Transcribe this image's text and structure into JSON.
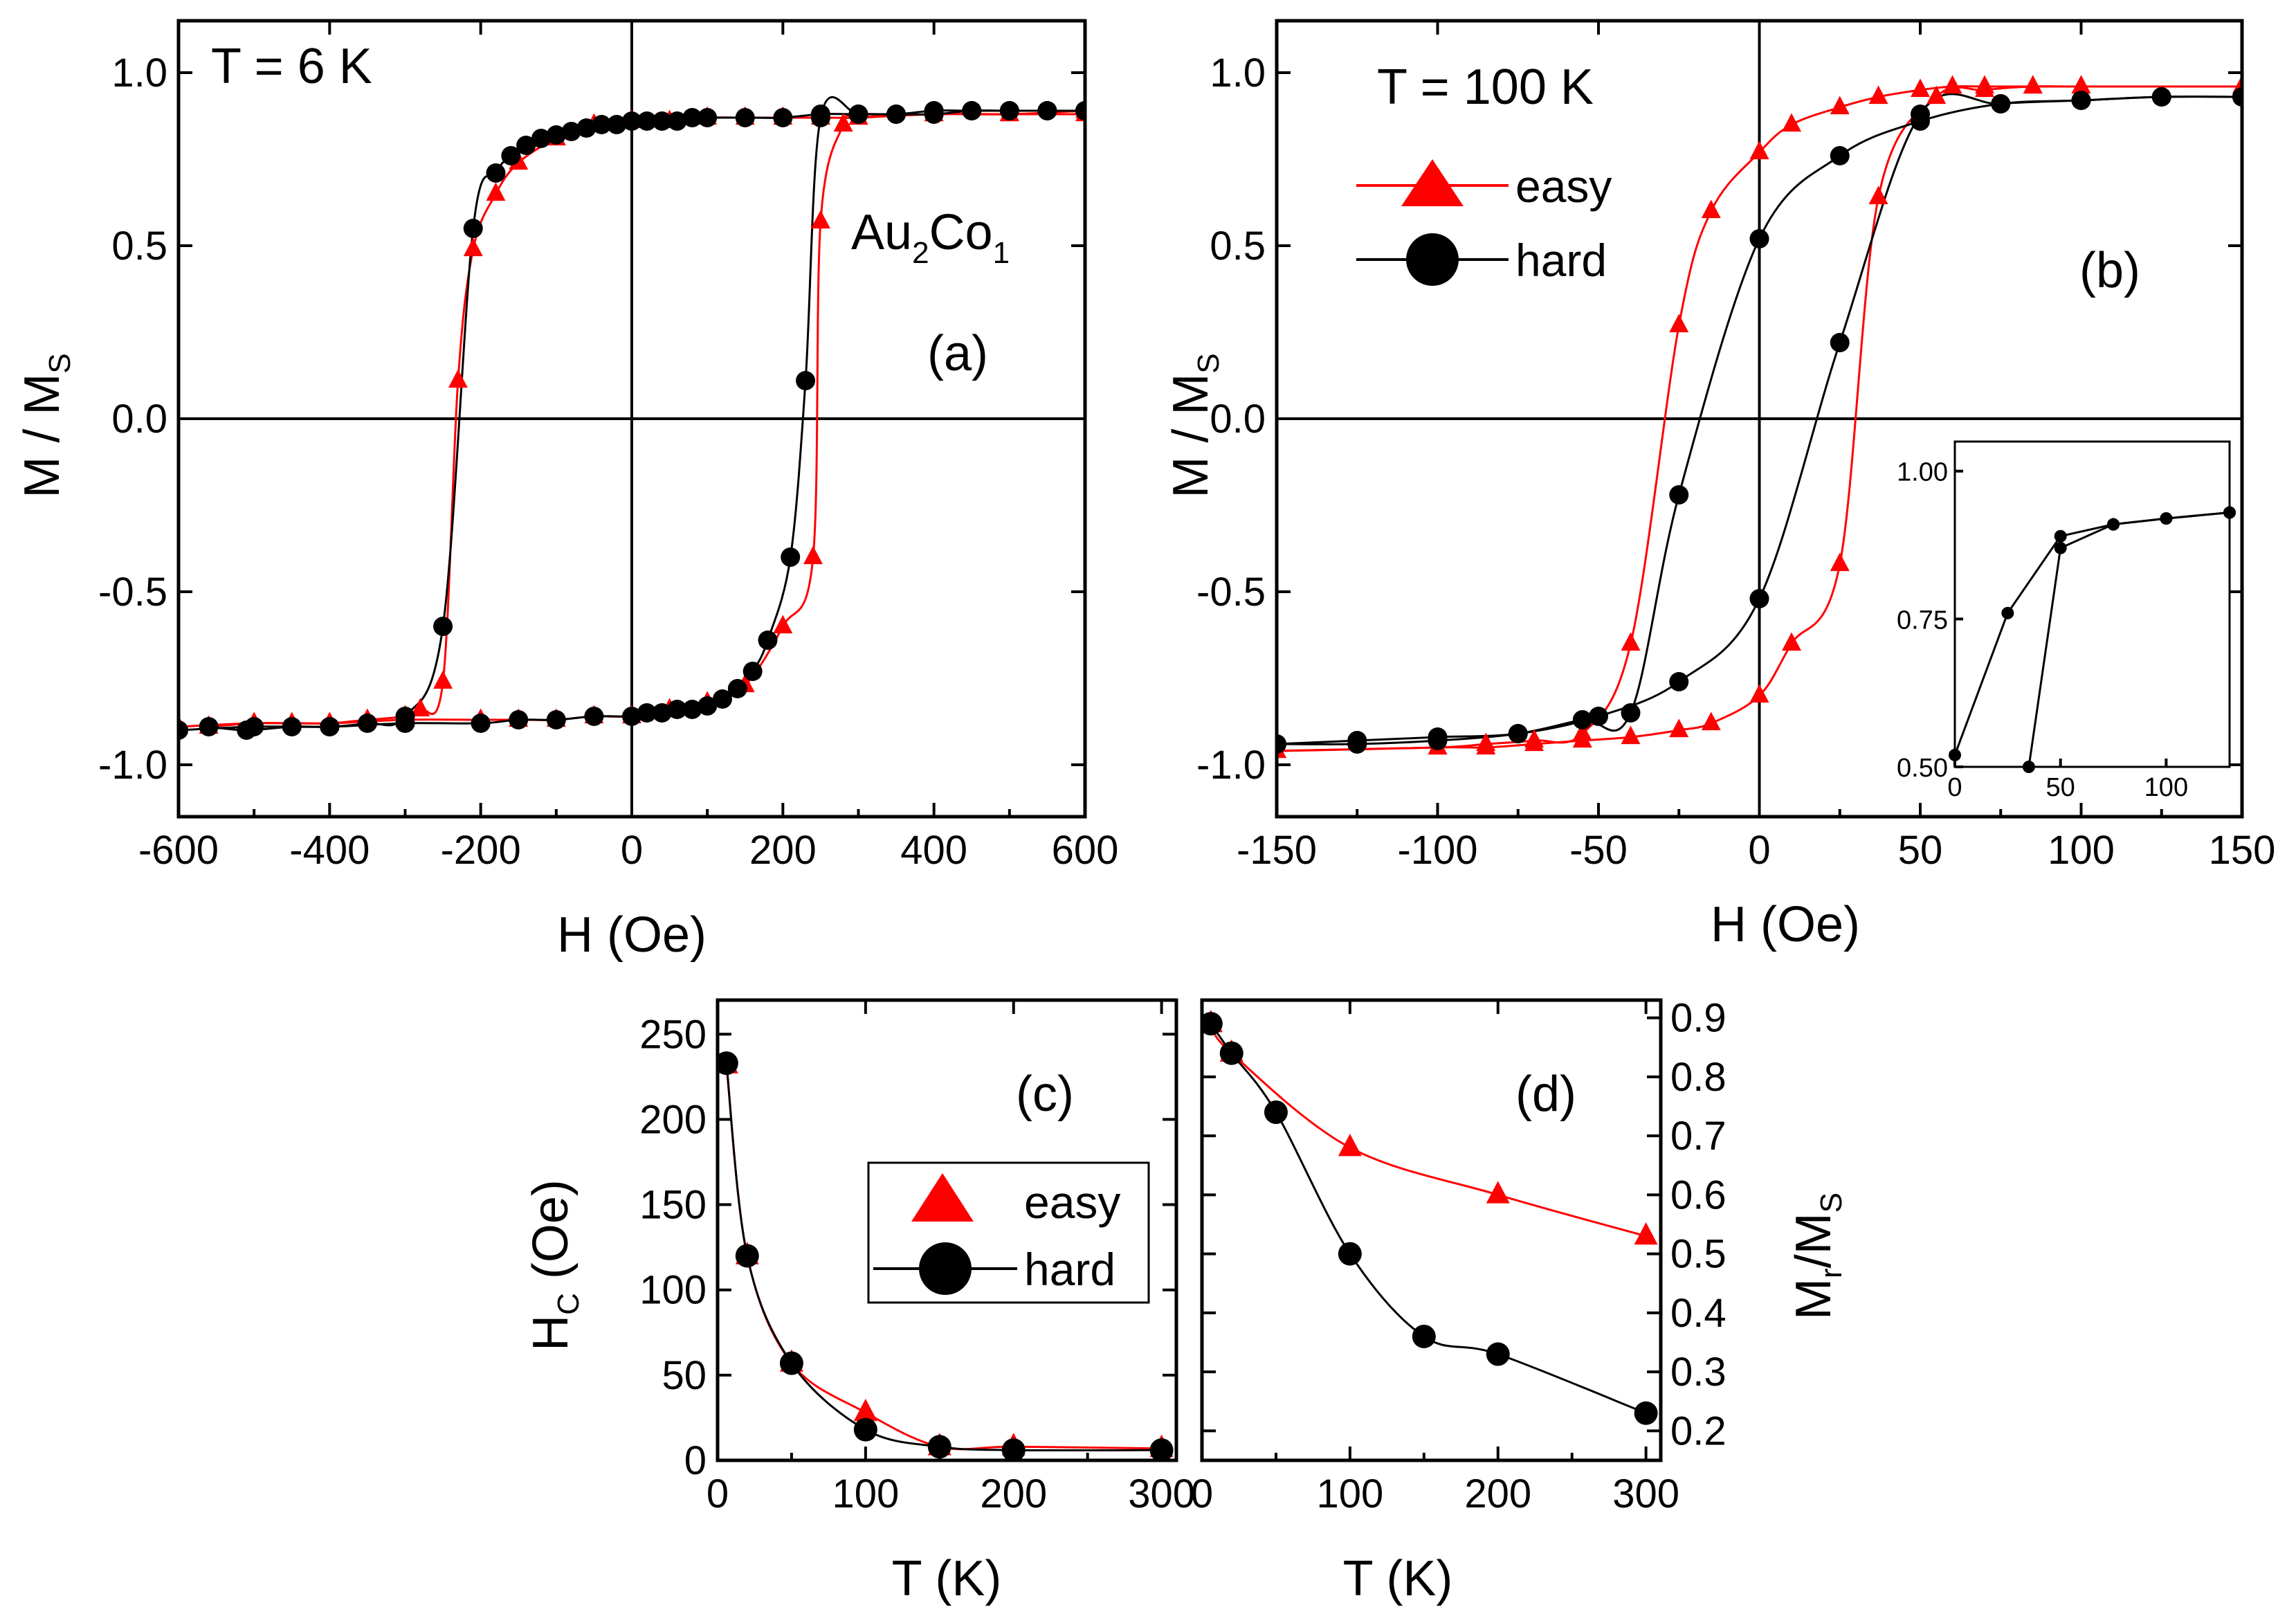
{
  "colors": {
    "easy": "#ff0000",
    "hard": "#000000"
  },
  "legend": {
    "easy": "easy",
    "hard": "hard"
  },
  "chart_data": [
    {
      "id": "a",
      "type": "scatter",
      "panel_label": "(a)",
      "annotation": "T = 6 K",
      "sample": {
        "base1": "Au",
        "sub1": "2",
        "base2": "Co",
        "sub2": "1"
      },
      "xlabel": "H (Oe)",
      "ylabel": {
        "main": "M / M",
        "sub": "S"
      },
      "xlim": [
        -600,
        600
      ],
      "ylim": [
        -1.15,
        1.15
      ],
      "xticks": [
        -600,
        -400,
        -200,
        0,
        200,
        400,
        600
      ],
      "xtick_labels": [
        "-600",
        "-400",
        "-200",
        "0",
        "200",
        "400",
        "600"
      ],
      "yticks": [
        -1.0,
        -0.5,
        0.0,
        0.5,
        1.0
      ],
      "ytick_labels": [
        "-1.0",
        "-0.5",
        "0.0",
        "0.5",
        "1.0"
      ],
      "zero_lines": true,
      "series": [
        {
          "name": "easy",
          "color": "#ff0000",
          "marker": "triangle",
          "x": [
            -560,
            -500,
            -450,
            -400,
            -350,
            -300,
            -280,
            -250,
            -230,
            -210,
            -180,
            -150,
            -100,
            -50,
            0,
            50,
            100,
            150,
            200,
            250,
            300,
            400,
            500,
            600
          ],
          "y": [
            -0.89,
            -0.88,
            -0.88,
            -0.88,
            -0.87,
            -0.86,
            -0.84,
            -0.76,
            0.11,
            0.49,
            0.65,
            0.74,
            0.81,
            0.85,
            0.86,
            0.86,
            0.87,
            0.87,
            0.87,
            0.87,
            0.87,
            0.88,
            0.88,
            0.88
          ]
        },
        {
          "name": "easy",
          "color": "#ff0000",
          "marker": "triangle",
          "x": [
            600,
            500,
            400,
            300,
            280,
            250,
            240,
            200,
            150,
            100,
            50,
            0,
            -50,
            -100,
            -150,
            -200,
            -300,
            -400,
            -500,
            -600
          ],
          "y": [
            0.89,
            0.88,
            0.88,
            0.87,
            0.85,
            0.57,
            -0.4,
            -0.6,
            -0.77,
            -0.82,
            -0.84,
            -0.86,
            -0.86,
            -0.87,
            -0.87,
            -0.87,
            -0.87,
            -0.88,
            -0.88,
            -0.89
          ]
        },
        {
          "name": "hard",
          "color": "#000000",
          "marker": "circle",
          "x": [
            -560,
            -510,
            -450,
            -400,
            -350,
            -300,
            -250,
            -210,
            -180,
            -160,
            -140,
            -120,
            -100,
            -80,
            -60,
            -40,
            -20,
            0,
            20,
            40,
            60,
            80,
            100,
            150,
            200,
            250,
            300,
            350,
            400,
            450,
            500,
            550,
            600
          ],
          "y": [
            -0.89,
            -0.9,
            -0.89,
            -0.89,
            -0.88,
            -0.86,
            -0.6,
            0.55,
            0.71,
            0.76,
            0.79,
            0.81,
            0.82,
            0.83,
            0.84,
            0.85,
            0.85,
            0.86,
            0.86,
            0.86,
            0.86,
            0.87,
            0.87,
            0.87,
            0.87,
            0.88,
            0.88,
            0.88,
            0.88,
            0.89,
            0.89,
            0.89,
            0.89
          ]
        },
        {
          "name": "hard",
          "color": "#000000",
          "marker": "circle",
          "x": [
            600,
            550,
            500,
            450,
            400,
            350,
            300,
            250,
            230,
            210,
            180,
            160,
            140,
            120,
            100,
            80,
            60,
            40,
            20,
            0,
            -50,
            -100,
            -150,
            -200,
            -300,
            -400,
            -500,
            -600
          ],
          "y": [
            0.89,
            0.89,
            0.89,
            0.89,
            0.89,
            0.88,
            0.88,
            0.87,
            0.11,
            -0.4,
            -0.64,
            -0.73,
            -0.78,
            -0.81,
            -0.83,
            -0.84,
            -0.84,
            -0.85,
            -0.85,
            -0.86,
            -0.86,
            -0.87,
            -0.87,
            -0.88,
            -0.88,
            -0.89,
            -0.89,
            -0.9
          ]
        }
      ]
    },
    {
      "id": "b",
      "type": "scatter",
      "panel_label": "(b)",
      "annotation": "T = 100 K",
      "xlabel": "H (Oe)",
      "ylabel": {
        "main": "M / M",
        "sub": "S"
      },
      "xlim": [
        -150,
        150
      ],
      "ylim": [
        -1.15,
        1.15
      ],
      "xticks": [
        -150,
        -100,
        -50,
        0,
        50,
        100,
        150
      ],
      "xtick_labels": [
        "-150",
        "-100",
        "-50",
        "0",
        "50",
        "100",
        "150"
      ],
      "yticks": [
        -1.0,
        -0.5,
        0.0,
        0.5,
        1.0
      ],
      "ytick_labels": [
        "-1.0",
        "-0.5",
        "0.0",
        "0.5",
        "1.0"
      ],
      "zero_lines": true,
      "legend_position": "upper-left",
      "series": [
        {
          "name": "easy",
          "color": "#ff0000",
          "marker": "triangle",
          "x": [
            -150,
            -100,
            -85,
            -70,
            -55,
            -40,
            -25,
            -15,
            0,
            10,
            25,
            37,
            50,
            60,
            70,
            85,
            100,
            150
          ],
          "y": [
            -0.96,
            -0.95,
            -0.94,
            -0.93,
            -0.91,
            -0.65,
            0.27,
            0.6,
            0.77,
            0.85,
            0.9,
            0.93,
            0.95,
            0.96,
            0.96,
            0.96,
            0.96,
            0.96
          ]
        },
        {
          "name": "easy",
          "color": "#ff0000",
          "marker": "triangle",
          "x": [
            150,
            100,
            85,
            70,
            55,
            37,
            25,
            10,
            0,
            -15,
            -25,
            -40,
            -55,
            -70,
            -85,
            -100,
            -150
          ],
          "y": [
            0.96,
            0.96,
            0.96,
            0.95,
            0.93,
            0.64,
            -0.42,
            -0.65,
            -0.8,
            -0.88,
            -0.9,
            -0.92,
            -0.93,
            -0.94,
            -0.95,
            -0.95,
            -0.96
          ]
        },
        {
          "name": "hard",
          "color": "#000000",
          "marker": "circle",
          "x": [
            -150,
            -125,
            -100,
            -75,
            -55,
            -40,
            -25,
            0,
            25,
            50,
            75,
            100,
            125,
            150
          ],
          "y": [
            -0.94,
            -0.94,
            -0.93,
            -0.91,
            -0.87,
            -0.85,
            -0.22,
            0.52,
            0.76,
            0.86,
            0.91,
            0.92,
            0.93,
            0.93
          ]
        },
        {
          "name": "hard",
          "color": "#000000",
          "marker": "circle",
          "x": [
            150,
            125,
            100,
            75,
            50,
            25,
            0,
            -25,
            -50,
            -75,
            -100,
            -125,
            -150
          ],
          "y": [
            0.93,
            0.93,
            0.92,
            0.91,
            0.88,
            0.22,
            -0.52,
            -0.76,
            -0.86,
            -0.91,
            -0.92,
            -0.93,
            -0.94
          ]
        }
      ],
      "inset": {
        "type": "line",
        "xlim": [
          0,
          130
        ],
        "ylim": [
          0.5,
          1.05
        ],
        "xticks": [
          0,
          50,
          100
        ],
        "xtick_labels": [
          "0",
          "50",
          "100"
        ],
        "yticks": [
          0.5,
          0.75,
          1.0
        ],
        "ytick_labels": [
          "0.50",
          "0.75",
          "1.00"
        ],
        "series": [
          {
            "name": "hard",
            "x": [
              0,
              25,
              50,
              75,
              100,
              130
            ],
            "y": [
              0.52,
              0.76,
              0.89,
              0.91,
              0.92,
              0.93
            ]
          },
          {
            "name": "hard",
            "x": [
              35,
              50,
              75,
              100,
              130
            ],
            "y": [
              0.5,
              0.87,
              0.91,
              0.92,
              0.93
            ]
          }
        ]
      }
    },
    {
      "id": "c",
      "type": "scatter",
      "panel_label": "(c)",
      "xlabel": "T (K)",
      "ylabel": {
        "main": "H",
        "sub": "C",
        "rest": " (Oe)"
      },
      "xlim": [
        0,
        310
      ],
      "ylim": [
        0,
        270
      ],
      "xticks": [
        0,
        100,
        200,
        300
      ],
      "xtick_labels": [
        "0",
        "100",
        "200",
        "300"
      ],
      "yticks": [
        0,
        50,
        100,
        150,
        200,
        250
      ],
      "ytick_labels": [
        "0",
        "50",
        "100",
        "150",
        "200",
        "250"
      ],
      "legend_position": "center-right",
      "series": [
        {
          "name": "easy",
          "color": "#ff0000",
          "marker": "triangle",
          "x": [
            6,
            20,
            50,
            100,
            150,
            200,
            300
          ],
          "y": [
            232,
            120,
            57,
            28,
            8,
            8,
            7
          ]
        },
        {
          "name": "hard",
          "color": "#000000",
          "marker": "circle",
          "x": [
            6,
            20,
            50,
            100,
            150,
            200,
            300
          ],
          "y": [
            233,
            120,
            57,
            18,
            8,
            6,
            6
          ]
        }
      ]
    },
    {
      "id": "d",
      "type": "scatter",
      "panel_label": "(d)",
      "xlabel": "T (K)",
      "ylabel": {
        "main": "M",
        "sub": "r",
        "rest": "/M",
        "sub2": "S"
      },
      "xlim": [
        0,
        310
      ],
      "ylim": [
        0.15,
        0.93
      ],
      "xticks": [
        0,
        100,
        200,
        300
      ],
      "xtick_labels": [
        "0",
        "100",
        "200",
        "300"
      ],
      "yticks": [
        0.2,
        0.3,
        0.4,
        0.5,
        0.6,
        0.7,
        0.8,
        0.9
      ],
      "ytick_labels": [
        "0.2",
        "0.3",
        "0.4",
        "0.5",
        "0.6",
        "0.7",
        "0.8",
        "0.9"
      ],
      "y_axis_side": "right",
      "series": [
        {
          "name": "easy",
          "color": "#ff0000",
          "marker": "triangle",
          "x": [
            6,
            20,
            100,
            200,
            300
          ],
          "y": [
            0.89,
            0.84,
            0.68,
            0.6,
            0.53
          ]
        },
        {
          "name": "hard",
          "color": "#000000",
          "marker": "circle",
          "x": [
            6,
            20,
            50,
            100,
            150,
            200,
            300
          ],
          "y": [
            0.89,
            0.84,
            0.74,
            0.5,
            0.36,
            0.33,
            0.23
          ]
        }
      ]
    }
  ]
}
